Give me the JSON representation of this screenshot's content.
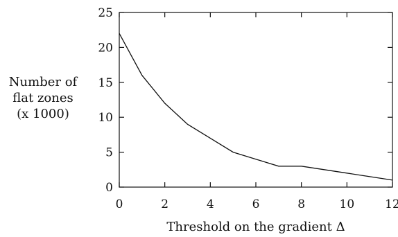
{
  "chart_data": {
    "type": "line",
    "title": "",
    "xlabel": "Threshold on the gradient Δ",
    "ylabel_lines": [
      "Number of",
      "flat zones",
      "(x 1000)"
    ],
    "xlim": [
      0,
      12
    ],
    "ylim": [
      0,
      25
    ],
    "x_ticks": [
      0,
      2,
      4,
      6,
      8,
      10,
      12
    ],
    "y_ticks": [
      0,
      5,
      10,
      15,
      20,
      25
    ],
    "grid": false,
    "series": [
      {
        "x": [
          0,
          1,
          2,
          3,
          4,
          5,
          6,
          7,
          8,
          10,
          12
        ],
        "y": [
          22,
          16,
          12,
          9,
          7,
          5,
          4,
          3,
          3,
          2,
          1
        ]
      }
    ]
  }
}
